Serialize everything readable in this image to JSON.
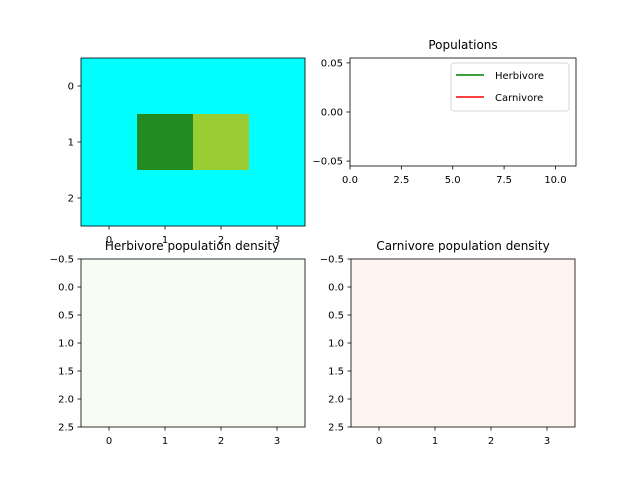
{
  "chart_data": [
    {
      "type": "heatmap",
      "title": "",
      "rows": 3,
      "cols": 4,
      "cell_colors": [
        [
          "#00ffff",
          "#00ffff",
          "#00ffff",
          "#00ffff"
        ],
        [
          "#00ffff",
          "#228b22",
          "#9acd32",
          "#00ffff"
        ],
        [
          "#00ffff",
          "#00ffff",
          "#00ffff",
          "#00ffff"
        ]
      ],
      "xlim": [
        -0.5,
        3.5
      ],
      "ylim": [
        2.5,
        -0.5
      ],
      "xticks": [
        "0",
        "1",
        "2",
        "3"
      ],
      "yticks": [
        "0",
        "1",
        "2"
      ]
    },
    {
      "type": "line",
      "title": "Populations",
      "x": [],
      "series": [
        {
          "name": "Herbivore",
          "color": "#008000",
          "values": []
        },
        {
          "name": "Carnivore",
          "color": "#ff0000",
          "values": []
        }
      ],
      "xlim": [
        0,
        11
      ],
      "ylim": [
        -0.055,
        0.055
      ],
      "xticks": [
        "0.0",
        "2.5",
        "5.0",
        "7.5",
        "10.0"
      ],
      "yticks": [
        "0.05",
        "0.00",
        "-0.05"
      ],
      "legend": "upper-right"
    },
    {
      "type": "heatmap",
      "title": "Herbivore population density",
      "fill_color": "#f7fcf5",
      "xlim": [
        -0.5,
        3.5
      ],
      "ylim": [
        2.5,
        -0.5
      ],
      "xticks": [
        "0",
        "1",
        "2",
        "3"
      ],
      "yticks": [
        "−0.5",
        "0.0",
        "0.5",
        "1.0",
        "1.5",
        "2.0",
        "2.5"
      ]
    },
    {
      "type": "heatmap",
      "title": "Carnivore population density",
      "fill_color": "#fff5f0",
      "xlim": [
        -0.5,
        3.5
      ],
      "ylim": [
        2.5,
        -0.5
      ],
      "xticks": [
        "0",
        "1",
        "2",
        "3"
      ],
      "yticks": [
        "−0.5",
        "0.0",
        "0.5",
        "1.0",
        "1.5",
        "2.0",
        "2.5"
      ]
    }
  ]
}
